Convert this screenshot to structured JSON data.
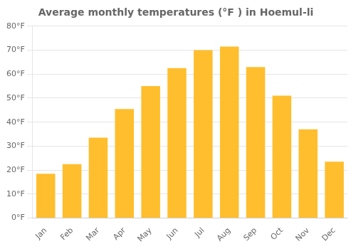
{
  "chart_data": {
    "type": "bar",
    "title": "Average monthly temperatures (°F ) in Hoemul-li",
    "categories": [
      "Jan",
      "Feb",
      "Mar",
      "Apr",
      "May",
      "Jun",
      "Jul",
      "Aug",
      "Sep",
      "Oct",
      "Nov",
      "Dec"
    ],
    "values": [
      18.5,
      22.5,
      33.5,
      45.5,
      55,
      62.5,
      70,
      71.5,
      63,
      51,
      37,
      23.5
    ],
    "color": "#FFBE2D",
    "ylim": [
      0,
      80
    ],
    "yticks": [
      {
        "value": 0,
        "label": "0°F"
      },
      {
        "value": 10,
        "label": "10°F"
      },
      {
        "value": 20,
        "label": "20°F"
      },
      {
        "value": 30,
        "label": "30°F"
      },
      {
        "value": 40,
        "label": "40°F"
      },
      {
        "value": 50,
        "label": "50°F"
      },
      {
        "value": 60,
        "label": "60°F"
      },
      {
        "value": 70,
        "label": "70°F"
      },
      {
        "value": 80,
        "label": "80°F"
      }
    ],
    "grid": true
  }
}
